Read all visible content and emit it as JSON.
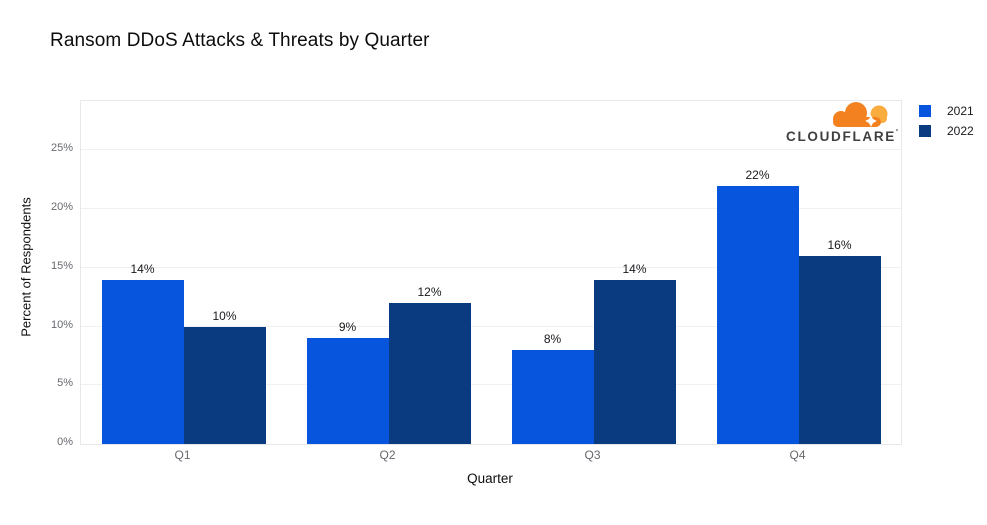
{
  "title": "Ransom DDoS Attacks & Threats by Quarter",
  "chart_data": {
    "type": "bar",
    "title": "Ransom DDoS Attacks & Threats by Quarter",
    "categories": [
      "Q1",
      "Q2",
      "Q3",
      "Q4"
    ],
    "series": [
      {
        "name": "2021",
        "color": "#0655DC",
        "values": [
          14,
          9,
          8,
          22
        ]
      },
      {
        "name": "2022",
        "color": "#0A3A7F",
        "values": [
          10,
          12,
          14,
          16
        ]
      }
    ],
    "value_suffix": "%",
    "xlabel": "Quarter",
    "ylabel": "Percent of Respondents",
    "yticks": [
      0,
      5,
      10,
      15,
      20,
      25
    ],
    "ytick_labels": [
      "0%",
      "5%",
      "10%",
      "15%",
      "20%",
      "25%"
    ],
    "ylim": [
      0,
      29.2
    ],
    "grid": true,
    "legend_entries": [
      "2021",
      "2022"
    ],
    "legend_position": "top-right",
    "data_labels_shown": true
  },
  "branding": {
    "logo_text": "CLOUDFLARE",
    "logo_mark": "'",
    "cloud_color": "#F48120",
    "cloud_highlight_color": "#FAAD3F",
    "wordmark_color": "#404041"
  },
  "style": {
    "background": "#FFFFFF",
    "grid_color": "#F0F0F2",
    "plot_border_color": "#E8E8EA",
    "tick_label_color": "#66696E",
    "text_color": "#111111"
  }
}
